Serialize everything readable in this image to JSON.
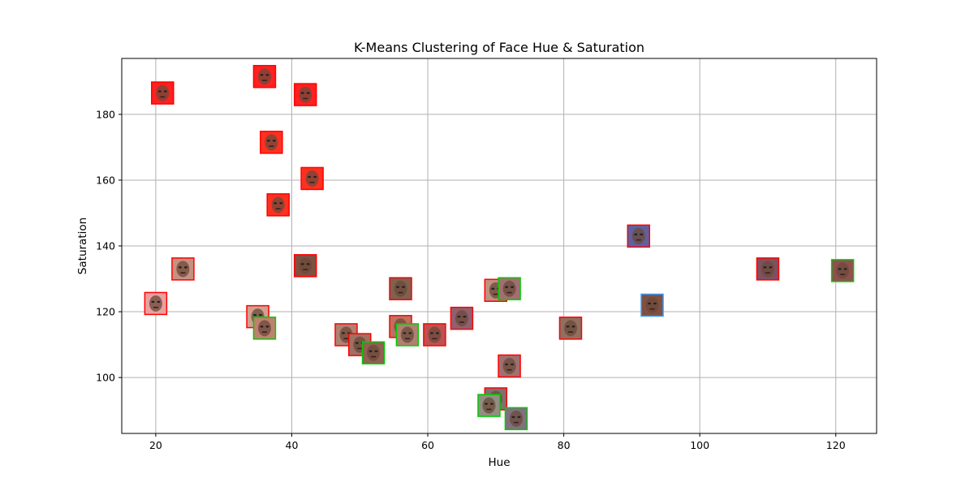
{
  "chart_data": {
    "type": "scatter",
    "title": "K-Means Clustering of Face Hue & Saturation",
    "xlabel": "Hue",
    "ylabel": "Saturation",
    "xlim": [
      15,
      126
    ],
    "ylim": [
      83,
      197
    ],
    "xticks": [
      20,
      40,
      60,
      80,
      100,
      120
    ],
    "yticks": [
      100,
      120,
      140,
      160,
      180
    ],
    "grid": true,
    "marker": "face-thumbnail",
    "points": [
      {
        "x": 20,
        "y": 122.5,
        "tint": "#e8a0a0",
        "border": "#ff0000"
      },
      {
        "x": 21,
        "y": 186.5,
        "tint": "#ff2020",
        "border": "#ff0000"
      },
      {
        "x": 24,
        "y": 133,
        "tint": "#c89080",
        "border": "#ff0000"
      },
      {
        "x": 35,
        "y": 118.5,
        "tint": "#d0a090",
        "border": "#ff0000"
      },
      {
        "x": 36,
        "y": 115,
        "tint": "#c08070",
        "border": "#00cc00"
      },
      {
        "x": 36,
        "y": 191.5,
        "tint": "#ff2020",
        "border": "#ff0000"
      },
      {
        "x": 37,
        "y": 171.5,
        "tint": "#ff3020",
        "border": "#ff0000"
      },
      {
        "x": 38,
        "y": 152.5,
        "tint": "#ff3020",
        "border": "#ff0000"
      },
      {
        "x": 42,
        "y": 186,
        "tint": "#ff2020",
        "border": "#ff0000"
      },
      {
        "x": 42,
        "y": 134,
        "tint": "#805040",
        "border": "#ff0000"
      },
      {
        "x": 43,
        "y": 160.5,
        "tint": "#ff3020",
        "border": "#ff0000"
      },
      {
        "x": 48,
        "y": 113,
        "tint": "#b08070",
        "border": "#ff0000"
      },
      {
        "x": 50,
        "y": 110,
        "tint": "#a07060",
        "border": "#ff0000"
      },
      {
        "x": 52,
        "y": 107.5,
        "tint": "#906050",
        "border": "#00cc00"
      },
      {
        "x": 56,
        "y": 115.5,
        "tint": "#c07060",
        "border": "#ff0000"
      },
      {
        "x": 57,
        "y": 113,
        "tint": "#b08070",
        "border": "#00cc00"
      },
      {
        "x": 56,
        "y": 127,
        "tint": "#806050",
        "border": "#ff0000"
      },
      {
        "x": 61,
        "y": 113,
        "tint": "#c05050",
        "border": "#ff0000"
      },
      {
        "x": 65,
        "y": 118,
        "tint": "#906070",
        "border": "#ff0000"
      },
      {
        "x": 70,
        "y": 126.5,
        "tint": "#c09080",
        "border": "#ff0000"
      },
      {
        "x": 72,
        "y": 127,
        "tint": "#a07070",
        "border": "#00cc00"
      },
      {
        "x": 70,
        "y": 93.5,
        "tint": "#807070",
        "border": "#ff0000"
      },
      {
        "x": 69,
        "y": 91.5,
        "tint": "#909080",
        "border": "#00cc00"
      },
      {
        "x": 72,
        "y": 103.5,
        "tint": "#a07070",
        "border": "#ff0000"
      },
      {
        "x": 73,
        "y": 87.5,
        "tint": "#807080",
        "border": "#00cc00"
      },
      {
        "x": 81,
        "y": 115,
        "tint": "#907060",
        "border": "#ff0000"
      },
      {
        "x": 91,
        "y": 143,
        "tint": "#6060a0",
        "border": "#ff0000"
      },
      {
        "x": 93,
        "y": 122,
        "tint": "#805040",
        "border": "#3399ff"
      },
      {
        "x": 110,
        "y": 133,
        "tint": "#805060",
        "border": "#ff0000"
      },
      {
        "x": 121,
        "y": 132.5,
        "tint": "#905050",
        "border": "#00cc00"
      }
    ]
  },
  "colors": {
    "grid": "#b0b0b0",
    "axes": "#000000",
    "background": "#ffffff"
  }
}
